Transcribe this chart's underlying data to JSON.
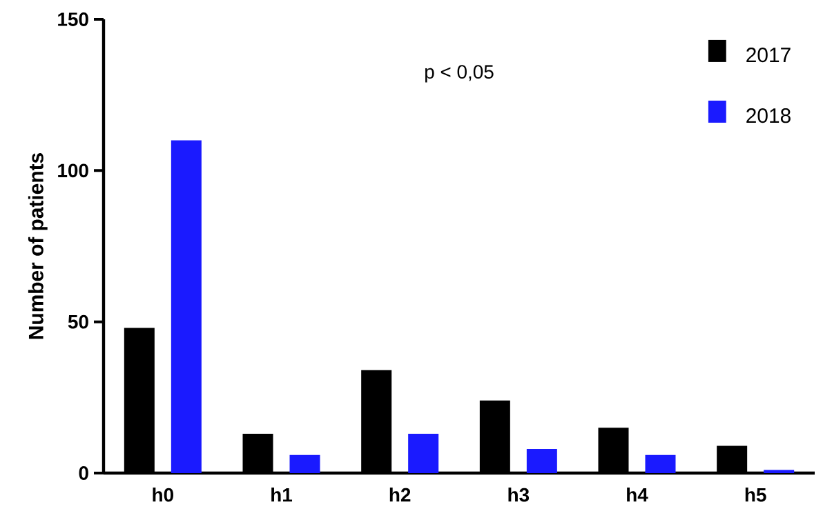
{
  "chart_data": {
    "type": "bar",
    "ylabel": "Number of patients",
    "categories": [
      "h0",
      "h1",
      "h2",
      "h3",
      "h4",
      "h5"
    ],
    "series": [
      {
        "name": "2017",
        "color": "#000000",
        "values": [
          48,
          13,
          34,
          24,
          15,
          9
        ]
      },
      {
        "name": "2018",
        "color": "#1a1aff",
        "values": [
          110,
          6,
          13,
          8,
          6,
          1
        ]
      }
    ],
    "ylim": [
      0,
      150
    ],
    "yticks": [
      0,
      50,
      100,
      150
    ],
    "legend": "top right",
    "grid": false,
    "annotations": [
      "p < 0,05"
    ]
  }
}
